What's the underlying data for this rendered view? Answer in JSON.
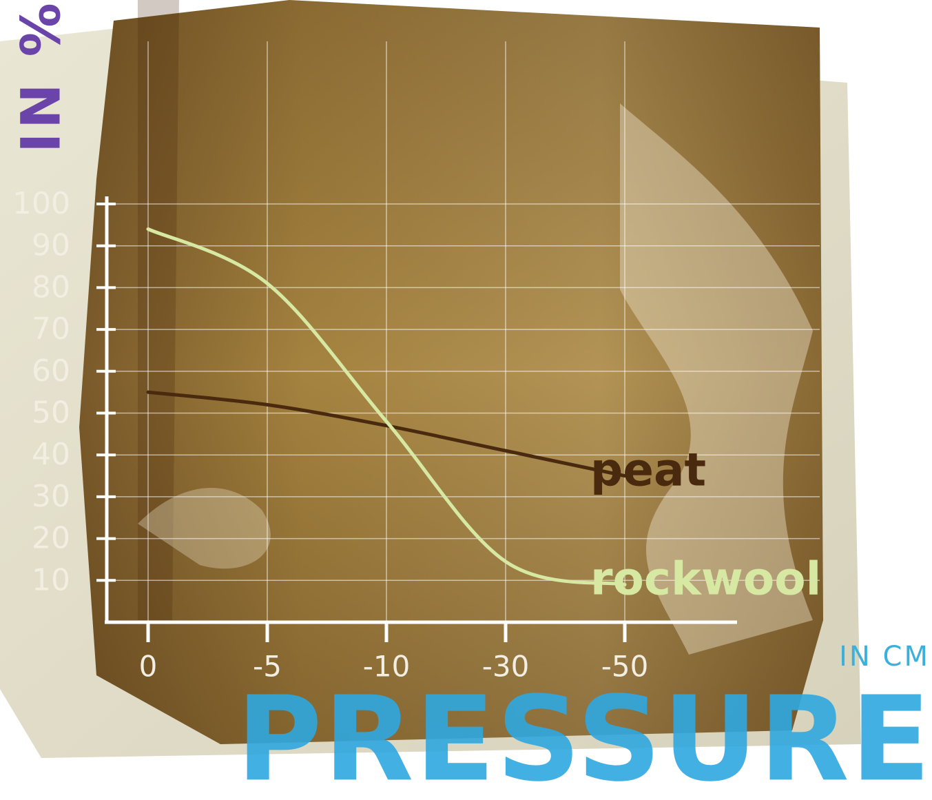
{
  "chart_data": {
    "type": "line",
    "y_label": "IN %",
    "x_label": "PRESSURE",
    "x_unit": "IN CM",
    "categories": [
      "0",
      "-5",
      "-10",
      "-30",
      "-50"
    ],
    "series": [
      {
        "name": "peat",
        "color": "#4a2a0e",
        "values": [
          55,
          52,
          47,
          41,
          35
        ]
      },
      {
        "name": "rockwool",
        "color": "#d6e8a2",
        "values": [
          94,
          81,
          48,
          14.5,
          9
        ]
      }
    ],
    "ylim": [
      0,
      100
    ],
    "yticks": [
      10,
      20,
      30,
      40,
      50,
      60,
      70,
      80,
      90,
      100
    ],
    "grid": true
  }
}
